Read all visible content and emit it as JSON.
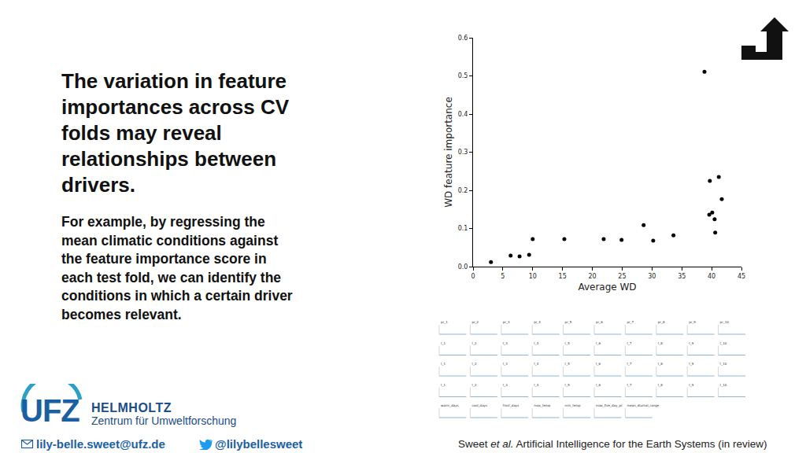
{
  "chart_data": {
    "type": "scatter",
    "x": [
      3.0,
      6.3,
      7.8,
      9.4,
      10.0,
      15.3,
      21.9,
      24.9,
      28.6,
      30.2,
      33.6,
      38.8,
      39.7,
      39.6,
      40.1,
      40.5,
      40.6,
      41.2,
      41.7
    ],
    "values": [
      0.012,
      0.029,
      0.027,
      0.031,
      0.072,
      0.072,
      0.072,
      0.07,
      0.109,
      0.068,
      0.082,
      0.511,
      0.225,
      0.136,
      0.142,
      0.124,
      0.089,
      0.235,
      0.177
    ],
    "x_label": "Average WD",
    "y_label": "WD feature importance",
    "color": "#000000",
    "marker": "circle",
    "grid": false,
    "xlim": [
      0,
      45
    ],
    "xticks": [
      0,
      5,
      10,
      15,
      20,
      25,
      30,
      35,
      40,
      45
    ],
    "ylim": [
      0,
      0.6
    ],
    "yticks": [
      {
        "value": 0,
        "label": "0.0"
      },
      0.1,
      0.2,
      0.3,
      0.4,
      0.5,
      0.6
    ]
  },
  "slide": {
    "heading": [
      "The variation in feature",
      "importances across CV",
      "folds may reveal",
      "relationships between",
      "drivers."
    ],
    "body": [
      "For example, by regressing the",
      "mean climatic conditions against",
      "the feature importance score in",
      "each test fold, we can identify the",
      "conditions in which a certain driver",
      "becomes relevant."
    ],
    "logo": {
      "mark": "UFZ",
      "name": "HELMHOLTZ",
      "subtitle": "Zentrum für Umweltforschung"
    },
    "email": "lily-belle.sweet@ufz.de",
    "twitter": "@lilybellesweet",
    "citation": {
      "author": "Sweet",
      "etal": "et al.",
      "rest": "Artificial Intelligence for the Earth Systems (in review)"
    },
    "panels": [
      [
        "pr_1",
        "pr_2",
        "pr_3",
        "pr_4",
        "pr_5",
        "pr_6",
        "pr_7",
        "pr_8",
        "pr_9",
        "pr_10"
      ],
      [
        "t_1",
        "t_2",
        "t_3",
        "t_4",
        "t_5",
        "t_6",
        "t_7",
        "t_8",
        "t_9",
        "t_10"
      ],
      [
        "t_1",
        "t_2",
        "t_3",
        "t_4",
        "t_5",
        "t_6",
        "t_7",
        "t_8",
        "t_9",
        "t_10"
      ],
      [
        "t_1",
        "t_2",
        "t_3",
        "t_4",
        "t_5",
        "t_6",
        "t_7",
        "t_8",
        "t_9",
        "t_10"
      ],
      [
        "warm_days",
        "cool_days",
        "frost_days",
        "max_temp",
        "min_temp",
        "max_five_day_pr",
        "mean_diurnal_range"
      ]
    ]
  }
}
